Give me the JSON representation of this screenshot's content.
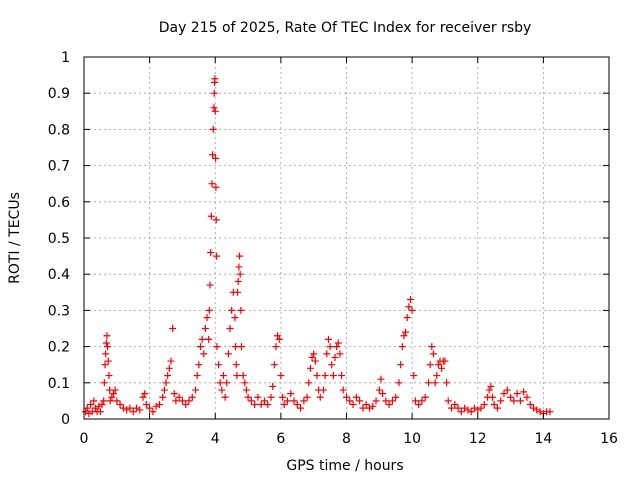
{
  "chart_data": {
    "type": "scatter",
    "title": "Day 215 of 2025, Rate Of TEC Index for receiver rsby",
    "xlabel": "GPS time / hours",
    "ylabel": "ROTI / TECUs",
    "xlim": [
      0,
      16
    ],
    "ylim": [
      0,
      1
    ],
    "x_ticks": [
      "0",
      "2",
      "4",
      "6",
      "8",
      "10",
      "12",
      "14",
      "16"
    ],
    "y_ticks": [
      "0",
      "0.1",
      "0.2",
      "0.3",
      "0.4",
      "0.5",
      "0.6",
      "0.7",
      "0.8",
      "0.9",
      "1"
    ],
    "grid": true,
    "marker": "+",
    "color": "#ff0000",
    "series": [
      {
        "name": "ROTI",
        "points": [
          [
            0.05,
            0.02
          ],
          [
            0.1,
            0.03
          ],
          [
            0.15,
            0.015
          ],
          [
            0.2,
            0.04
          ],
          [
            0.25,
            0.02
          ],
          [
            0.3,
            0.05
          ],
          [
            0.35,
            0.03
          ],
          [
            0.4,
            0.02
          ],
          [
            0.45,
            0.035
          ],
          [
            0.5,
            0.02
          ],
          [
            0.55,
            0.04
          ],
          [
            0.6,
            0.05
          ],
          [
            0.62,
            0.1
          ],
          [
            0.64,
            0.15
          ],
          [
            0.66,
            0.18
          ],
          [
            0.68,
            0.21
          ],
          [
            0.7,
            0.23
          ],
          [
            0.72,
            0.2
          ],
          [
            0.74,
            0.16
          ],
          [
            0.76,
            0.12
          ],
          [
            0.78,
            0.08
          ],
          [
            0.8,
            0.05
          ],
          [
            0.85,
            0.06
          ],
          [
            0.9,
            0.07
          ],
          [
            0.95,
            0.08
          ],
          [
            1.0,
            0.05
          ],
          [
            1.1,
            0.04
          ],
          [
            1.2,
            0.03
          ],
          [
            1.3,
            0.025
          ],
          [
            1.4,
            0.03
          ],
          [
            1.5,
            0.02
          ],
          [
            1.6,
            0.03
          ],
          [
            1.7,
            0.025
          ],
          [
            1.8,
            0.06
          ],
          [
            1.85,
            0.07
          ],
          [
            1.9,
            0.04
          ],
          [
            2.0,
            0.03
          ],
          [
            2.1,
            0.02
          ],
          [
            2.2,
            0.035
          ],
          [
            2.3,
            0.04
          ],
          [
            2.4,
            0.06
          ],
          [
            2.45,
            0.08
          ],
          [
            2.5,
            0.1
          ],
          [
            2.55,
            0.12
          ],
          [
            2.6,
            0.14
          ],
          [
            2.65,
            0.16
          ],
          [
            2.7,
            0.25
          ],
          [
            2.75,
            0.07
          ],
          [
            2.8,
            0.05
          ],
          [
            2.9,
            0.06
          ],
          [
            3.0,
            0.05
          ],
          [
            3.1,
            0.04
          ],
          [
            3.2,
            0.05
          ],
          [
            3.3,
            0.06
          ],
          [
            3.4,
            0.08
          ],
          [
            3.45,
            0.12
          ],
          [
            3.5,
            0.15
          ],
          [
            3.55,
            0.2
          ],
          [
            3.6,
            0.22
          ],
          [
            3.65,
            0.18
          ],
          [
            3.7,
            0.25
          ],
          [
            3.75,
            0.28
          ],
          [
            3.8,
            0.22
          ],
          [
            3.82,
            0.3
          ],
          [
            3.84,
            0.37
          ],
          [
            3.86,
            0.46
          ],
          [
            3.88,
            0.56
          ],
          [
            3.9,
            0.65
          ],
          [
            3.92,
            0.73
          ],
          [
            3.94,
            0.8
          ],
          [
            3.96,
            0.86
          ],
          [
            3.97,
            0.9
          ],
          [
            3.98,
            0.93
          ],
          [
            3.99,
            0.94
          ],
          [
            4.0,
            0.85
          ],
          [
            4.01,
            0.72
          ],
          [
            4.02,
            0.64
          ],
          [
            4.03,
            0.55
          ],
          [
            4.04,
            0.45
          ],
          [
            4.05,
            0.2
          ],
          [
            4.1,
            0.15
          ],
          [
            4.15,
            0.1
          ],
          [
            4.2,
            0.08
          ],
          [
            4.25,
            0.12
          ],
          [
            4.3,
            0.06
          ],
          [
            4.35,
            0.1
          ],
          [
            4.4,
            0.18
          ],
          [
            4.45,
            0.25
          ],
          [
            4.5,
            0.3
          ],
          [
            4.55,
            0.35
          ],
          [
            4.6,
            0.28
          ],
          [
            4.62,
            0.2
          ],
          [
            4.64,
            0.15
          ],
          [
            4.66,
            0.12
          ],
          [
            4.68,
            0.35
          ],
          [
            4.7,
            0.38
          ],
          [
            4.72,
            0.42
          ],
          [
            4.74,
            0.45
          ],
          [
            4.76,
            0.4
          ],
          [
            4.78,
            0.3
          ],
          [
            4.8,
            0.2
          ],
          [
            4.85,
            0.12
          ],
          [
            4.9,
            0.1
          ],
          [
            4.95,
            0.08
          ],
          [
            5.0,
            0.06
          ],
          [
            5.1,
            0.05
          ],
          [
            5.2,
            0.04
          ],
          [
            5.3,
            0.06
          ],
          [
            5.4,
            0.04
          ],
          [
            5.5,
            0.05
          ],
          [
            5.6,
            0.04
          ],
          [
            5.7,
            0.06
          ],
          [
            5.75,
            0.09
          ],
          [
            5.8,
            0.15
          ],
          [
            5.85,
            0.2
          ],
          [
            5.9,
            0.23
          ],
          [
            5.95,
            0.22
          ],
          [
            6.0,
            0.12
          ],
          [
            6.05,
            0.06
          ],
          [
            6.1,
            0.04
          ],
          [
            6.2,
            0.05
          ],
          [
            6.3,
            0.07
          ],
          [
            6.4,
            0.05
          ],
          [
            6.5,
            0.04
          ],
          [
            6.6,
            0.03
          ],
          [
            6.7,
            0.05
          ],
          [
            6.8,
            0.06
          ],
          [
            6.85,
            0.1
          ],
          [
            6.9,
            0.14
          ],
          [
            6.95,
            0.17
          ],
          [
            7.0,
            0.18
          ],
          [
            7.05,
            0.16
          ],
          [
            7.1,
            0.12
          ],
          [
            7.15,
            0.08
          ],
          [
            7.2,
            0.06
          ],
          [
            7.3,
            0.08
          ],
          [
            7.35,
            0.12
          ],
          [
            7.4,
            0.18
          ],
          [
            7.45,
            0.22
          ],
          [
            7.5,
            0.2
          ],
          [
            7.55,
            0.15
          ],
          [
            7.6,
            0.12
          ],
          [
            7.65,
            0.17
          ],
          [
            7.7,
            0.2
          ],
          [
            7.75,
            0.21
          ],
          [
            7.8,
            0.18
          ],
          [
            7.85,
            0.12
          ],
          [
            7.9,
            0.08
          ],
          [
            8.0,
            0.06
          ],
          [
            8.1,
            0.05
          ],
          [
            8.2,
            0.04
          ],
          [
            8.3,
            0.06
          ],
          [
            8.4,
            0.05
          ],
          [
            8.5,
            0.03
          ],
          [
            8.6,
            0.04
          ],
          [
            8.7,
            0.03
          ],
          [
            8.8,
            0.035
          ],
          [
            8.9,
            0.05
          ],
          [
            9.0,
            0.08
          ],
          [
            9.05,
            0.11
          ],
          [
            9.1,
            0.07
          ],
          [
            9.2,
            0.05
          ],
          [
            9.3,
            0.04
          ],
          [
            9.4,
            0.05
          ],
          [
            9.5,
            0.06
          ],
          [
            9.6,
            0.1
          ],
          [
            9.65,
            0.15
          ],
          [
            9.7,
            0.2
          ],
          [
            9.75,
            0.23
          ],
          [
            9.8,
            0.24
          ],
          [
            9.85,
            0.28
          ],
          [
            9.9,
            0.31
          ],
          [
            9.95,
            0.33
          ],
          [
            10.0,
            0.3
          ],
          [
            10.05,
            0.12
          ],
          [
            10.1,
            0.05
          ],
          [
            10.2,
            0.04
          ],
          [
            10.3,
            0.05
          ],
          [
            10.4,
            0.06
          ],
          [
            10.5,
            0.1
          ],
          [
            10.55,
            0.15
          ],
          [
            10.6,
            0.2
          ],
          [
            10.65,
            0.18
          ],
          [
            10.7,
            0.1
          ],
          [
            10.75,
            0.12
          ],
          [
            10.8,
            0.15
          ],
          [
            10.85,
            0.16
          ],
          [
            10.9,
            0.14
          ],
          [
            10.95,
            0.16
          ],
          [
            11.0,
            0.16
          ],
          [
            11.05,
            0.1
          ],
          [
            11.1,
            0.05
          ],
          [
            11.2,
            0.03
          ],
          [
            11.3,
            0.04
          ],
          [
            11.4,
            0.03
          ],
          [
            11.5,
            0.02
          ],
          [
            11.6,
            0.03
          ],
          [
            11.7,
            0.025
          ],
          [
            11.8,
            0.02
          ],
          [
            11.9,
            0.03
          ],
          [
            12.0,
            0.025
          ],
          [
            12.1,
            0.03
          ],
          [
            12.2,
            0.04
          ],
          [
            12.3,
            0.06
          ],
          [
            12.35,
            0.08
          ],
          [
            12.4,
            0.09
          ],
          [
            12.45,
            0.06
          ],
          [
            12.5,
            0.04
          ],
          [
            12.6,
            0.03
          ],
          [
            12.7,
            0.05
          ],
          [
            12.8,
            0.07
          ],
          [
            12.9,
            0.08
          ],
          [
            13.0,
            0.06
          ],
          [
            13.1,
            0.05
          ],
          [
            13.2,
            0.07
          ],
          [
            13.3,
            0.05
          ],
          [
            13.4,
            0.075
          ],
          [
            13.5,
            0.06
          ],
          [
            13.6,
            0.04
          ],
          [
            13.7,
            0.03
          ],
          [
            13.8,
            0.025
          ],
          [
            13.9,
            0.02
          ],
          [
            14.0,
            0.015
          ],
          [
            14.1,
            0.02
          ],
          [
            14.2,
            0.02
          ]
        ]
      }
    ]
  }
}
